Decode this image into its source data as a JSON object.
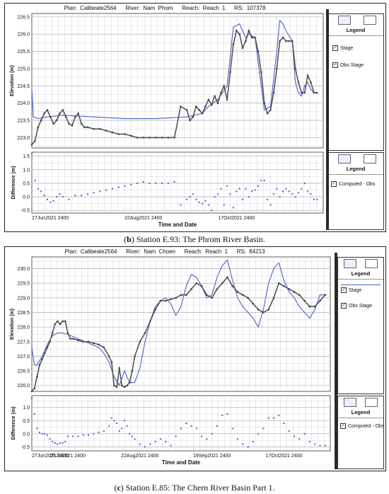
{
  "panels": [
    {
      "plan_title": {
        "plan": "Plan: Calibeate2564",
        "river": "River: Nam Phom",
        "reach": "Reach: Reach 1",
        "rs": "RS: 107378"
      },
      "caption": "(b) Station E.93: The Phrom River Basin.",
      "caption_bold": "b",
      "legend1": {
        "header": "Legend",
        "items": [
          "Stage",
          "Obs Stage"
        ]
      },
      "legend2": {
        "header": "Legend",
        "items": [
          "Computed - Obs"
        ]
      }
    },
    {
      "plan_title": {
        "plan": "Plan: Calibeate2564",
        "river": "River: Nam Choen",
        "reach": "Reach: Reach 1",
        "rs": "RS: 84213"
      },
      "caption": "(c) Station E.85: The Chern River Basin Part 1.",
      "caption_bold": "c",
      "legend1": {
        "header": "Legend",
        "items": [
          "Stage",
          "Obs Stage"
        ]
      },
      "legend2": {
        "header": "Legend",
        "items": [
          "Computed - Obs"
        ]
      }
    }
  ],
  "chart_data": [
    {
      "type": "line",
      "panel": "b-upper",
      "ylabel": "Elevation (m)",
      "ylim": [
        222.7,
        226.6
      ],
      "yticks": [
        223.0,
        223.5,
        224.0,
        224.5,
        225.0,
        225.5,
        226.0,
        226.5
      ],
      "xlim": [
        0,
        94
      ],
      "grid": true,
      "series": [
        {
          "name": "Stage",
          "color": "#4a5fd6",
          "x": [
            0,
            0.5,
            2,
            5,
            10,
            20,
            30,
            40,
            50,
            55,
            57,
            60,
            63,
            65,
            67,
            69,
            70,
            72,
            74,
            75,
            77,
            79,
            80,
            81,
            82,
            84,
            85,
            86,
            87,
            88,
            89,
            90,
            91,
            92
          ],
          "y": [
            224.4,
            223.6,
            223.55,
            223.6,
            223.65,
            223.6,
            223.55,
            223.55,
            223.6,
            223.7,
            223.9,
            224.1,
            224.5,
            226.2,
            226.3,
            225.9,
            226.0,
            225.9,
            224.5,
            223.8,
            223.9,
            225.5,
            226.4,
            226.3,
            226.1,
            225.8,
            224.6,
            224.3,
            224.2,
            224.5,
            224.6,
            224.4,
            224.3,
            224.3
          ]
        },
        {
          "name": "Obs Stage",
          "color": "#555555",
          "x": [
            0,
            1,
            2,
            3,
            4,
            5,
            6,
            7,
            8,
            9,
            10,
            11,
            12,
            13,
            14,
            15,
            16,
            17,
            18,
            20,
            22,
            24,
            26,
            28,
            30,
            32,
            34,
            36,
            38,
            40,
            42,
            44,
            46,
            48,
            50,
            51,
            52,
            53,
            54,
            55,
            56,
            57,
            58,
            59,
            60,
            61,
            62,
            63,
            64,
            65,
            66,
            67,
            68,
            69,
            70,
            71,
            72,
            73,
            74,
            75,
            76,
            77,
            78,
            79,
            80,
            81,
            82,
            83,
            84,
            85,
            86,
            87,
            88,
            89,
            90,
            91,
            92
          ],
          "y": [
            222.8,
            222.9,
            223.3,
            223.5,
            223.7,
            223.8,
            223.6,
            223.4,
            223.5,
            223.7,
            223.8,
            223.6,
            223.4,
            223.35,
            223.6,
            223.7,
            223.4,
            223.3,
            223.3,
            223.25,
            223.25,
            223.2,
            223.15,
            223.1,
            223.1,
            223.05,
            223.0,
            223.0,
            223.0,
            223.0,
            223.0,
            223.0,
            223.0,
            223.9,
            223.8,
            223.5,
            223.6,
            223.9,
            223.8,
            223.7,
            223.9,
            224.1,
            223.95,
            224.2,
            224.0,
            224.3,
            224.5,
            224.1,
            224.9,
            225.7,
            226.1,
            226.0,
            225.6,
            225.8,
            226.1,
            225.9,
            225.9,
            225.5,
            224.9,
            224.0,
            223.7,
            223.8,
            224.3,
            225.0,
            225.8,
            225.9,
            225.8,
            225.8,
            225.8,
            225.0,
            224.6,
            224.3,
            224.3,
            224.8,
            224.6,
            224.3,
            224.3
          ]
        }
      ]
    },
    {
      "type": "scatter",
      "panel": "b-lower",
      "ylabel": "Difference (m)",
      "ylim": [
        -0.6,
        1.65
      ],
      "yticks": [
        1.5,
        1.0,
        0.5,
        0.0,
        -0.5
      ],
      "xlim": [
        0,
        94
      ],
      "xticklabels": [
        "27Jun2021 2400",
        "22Aug2021 2400",
        "17Oct2021 2400"
      ],
      "xticks": [
        0,
        36,
        66
      ],
      "xlabel": "Time and Date",
      "grid": true,
      "series": [
        {
          "name": "Computed - Obs",
          "color": "#4a5fd6",
          "x": [
            0,
            1,
            2,
            3,
            4,
            5,
            6,
            7,
            8,
            9,
            10,
            12,
            14,
            16,
            18,
            20,
            22,
            24,
            26,
            28,
            30,
            32,
            34,
            36,
            38,
            40,
            42,
            44,
            46,
            48,
            50,
            51,
            52,
            53,
            54,
            55,
            56,
            57,
            58,
            59,
            60,
            61,
            62,
            63,
            64,
            65,
            66,
            67,
            68,
            69,
            70,
            71,
            72,
            73,
            74,
            75,
            76,
            77,
            78,
            79,
            80,
            81,
            82,
            83,
            84,
            85,
            86,
            87,
            88,
            89,
            90,
            91,
            92
          ],
          "y": [
            1.6,
            0.6,
            0.3,
            0.2,
            0.05,
            -0.1,
            -0.2,
            -0.15,
            0.0,
            0.1,
            0.0,
            -0.1,
            0.05,
            0.05,
            0.1,
            0.15,
            0.2,
            0.25,
            0.3,
            0.35,
            0.4,
            0.45,
            0.5,
            0.55,
            0.5,
            0.5,
            0.5,
            0.5,
            0.55,
            -0.3,
            -0.1,
            0.0,
            0.1,
            -0.1,
            -0.2,
            -0.25,
            -0.15,
            -0.3,
            -0.5,
            0.0,
            0.1,
            0.3,
            -0.3,
            0.4,
            0.1,
            -0.4,
            0.2,
            0.3,
            -0.1,
            0.3,
            0.0,
            0.2,
            0.25,
            0.4,
            0.6,
            0.6,
            -0.1,
            -0.3,
            0.1,
            0.3,
            0.0,
            0.2,
            0.3,
            0.2,
            0.1,
            0.0,
            0.15,
            0.3,
            0.5,
            0.2,
            0.1,
            -0.1,
            -0.1
          ]
        }
      ]
    },
    {
      "type": "line",
      "panel": "c-upper",
      "ylabel": "Elevation (m)",
      "ylim": [
        225.8,
        230.4
      ],
      "yticks": [
        226.0,
        226.5,
        227.0,
        227.5,
        228.0,
        228.5,
        229.0,
        229.5,
        230.0
      ],
      "xlim": [
        0,
        116
      ],
      "grid": true,
      "series": [
        {
          "name": "Stage",
          "color": "#4a5fd6",
          "x": [
            0,
            1,
            2,
            4,
            6,
            8,
            10,
            12,
            14,
            18,
            22,
            26,
            28,
            30,
            32,
            34,
            36,
            38,
            40,
            42,
            44,
            46,
            48,
            50,
            52,
            54,
            56,
            58,
            60,
            62,
            64,
            66,
            68,
            70,
            72,
            74,
            76,
            78,
            80,
            82,
            84,
            86,
            88,
            90,
            92,
            94,
            96,
            98,
            100,
            102,
            104,
            106,
            108,
            110,
            112,
            114
          ],
          "y": [
            227.3,
            226.7,
            226.7,
            227.0,
            227.4,
            227.7,
            227.8,
            227.8,
            227.75,
            227.6,
            227.45,
            227.3,
            227.1,
            226.8,
            226.3,
            226.0,
            226.5,
            226.1,
            226.1,
            226.6,
            227.5,
            228.2,
            228.7,
            228.9,
            229.0,
            228.8,
            228.4,
            228.7,
            229.4,
            229.8,
            229.7,
            229.4,
            229.0,
            229.1,
            229.7,
            230.1,
            230.3,
            229.6,
            229.0,
            228.7,
            228.5,
            228.3,
            228.0,
            228.6,
            229.5,
            230.0,
            230.2,
            229.6,
            229.2,
            229.0,
            228.7,
            228.5,
            228.3,
            228.6,
            229.1,
            229.1
          ]
        },
        {
          "name": "Obs Stage",
          "color": "#555555",
          "x": [
            0,
            1,
            2,
            3,
            4,
            5,
            6,
            7,
            8,
            9,
            10,
            11,
            12,
            13,
            14,
            15,
            16,
            18,
            20,
            22,
            24,
            26,
            28,
            30,
            31,
            32,
            33,
            34,
            35,
            36,
            37,
            38,
            39,
            40,
            42,
            44,
            46,
            48,
            50,
            52,
            54,
            56,
            58,
            60,
            62,
            64,
            66,
            68,
            70,
            72,
            74,
            76,
            78,
            80,
            82,
            84,
            86,
            88,
            90,
            92,
            94,
            96,
            98,
            100,
            102,
            104,
            106,
            108,
            110,
            112,
            114
          ],
          "y": [
            225.8,
            225.9,
            226.3,
            226.7,
            226.9,
            227.1,
            227.3,
            227.5,
            227.8,
            228.1,
            228.2,
            228.1,
            228.2,
            228.2,
            227.8,
            227.6,
            227.6,
            227.55,
            227.5,
            227.5,
            227.45,
            227.4,
            227.3,
            227.0,
            226.8,
            226.0,
            225.95,
            226.6,
            226.0,
            225.95,
            226.0,
            226.1,
            226.5,
            227.0,
            227.5,
            227.8,
            228.2,
            228.6,
            228.9,
            228.9,
            228.95,
            229.0,
            229.1,
            229.1,
            229.3,
            229.5,
            229.4,
            229.1,
            229.0,
            229.3,
            229.5,
            229.7,
            229.4,
            229.2,
            229.1,
            229.0,
            228.8,
            228.6,
            228.5,
            228.6,
            229.0,
            229.5,
            229.4,
            229.3,
            229.2,
            229.1,
            228.9,
            228.7,
            228.7,
            228.9,
            229.1
          ]
        }
      ]
    },
    {
      "type": "scatter",
      "panel": "c-lower",
      "ylabel": "Difference (m)",
      "ylim": [
        -0.65,
        1.45
      ],
      "yticks": [
        1.0,
        0.5,
        0.0,
        -0.5
      ],
      "xlim": [
        0,
        116
      ],
      "xticklabels": [
        "27Jun2021 2400",
        "25Jul2021 2400",
        "22Aug2021 2400",
        "19Sep2021 2400",
        "17Oct2021 2400"
      ],
      "xticks": [
        0,
        14,
        42,
        70,
        98
      ],
      "xlabel": "Time and Date",
      "grid": true,
      "series": [
        {
          "name": "Computed - Obs",
          "color": "#4a5fd6",
          "x": [
            0,
            1,
            2,
            3,
            4,
            5,
            6,
            7,
            8,
            9,
            10,
            11,
            12,
            13,
            14,
            16,
            18,
            20,
            22,
            24,
            26,
            28,
            30,
            31,
            32,
            33,
            34,
            35,
            36,
            37,
            38,
            39,
            40,
            42,
            44,
            46,
            48,
            50,
            52,
            54,
            56,
            58,
            60,
            62,
            64,
            66,
            68,
            70,
            72,
            74,
            76,
            78,
            80,
            82,
            84,
            86,
            88,
            90,
            92,
            94,
            96,
            98,
            100,
            102,
            104,
            106,
            108,
            110,
            112,
            114
          ],
          "y": [
            1.35,
            0.75,
            0.2,
            0.05,
            0.0,
            0.0,
            -0.05,
            -0.2,
            -0.3,
            -0.35,
            -0.4,
            -0.35,
            -0.35,
            -0.3,
            -0.1,
            -0.1,
            -0.1,
            -0.05,
            -0.05,
            0.0,
            0.05,
            0.1,
            0.3,
            0.6,
            0.5,
            0.4,
            0.1,
            0.2,
            0.5,
            0.3,
            0.0,
            -0.1,
            -0.2,
            -0.4,
            -0.5,
            -0.4,
            -0.3,
            -0.2,
            -0.3,
            -0.45,
            -0.1,
            0.2,
            0.4,
            0.3,
            0.2,
            -0.1,
            -0.2,
            0.0,
            0.3,
            0.7,
            0.75,
            0.2,
            -0.2,
            -0.4,
            -0.5,
            -0.3,
            0.0,
            0.2,
            0.6,
            0.6,
            0.7,
            0.4,
            0.1,
            -0.1,
            -0.2,
            0.0,
            -0.3,
            -0.4,
            -0.45,
            -0.45
          ]
        }
      ]
    }
  ]
}
